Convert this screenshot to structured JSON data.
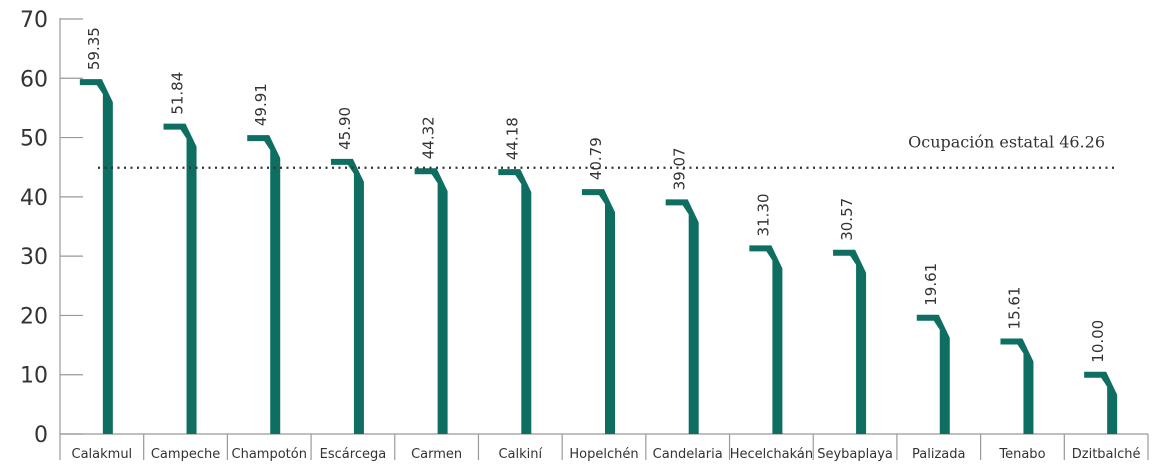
{
  "chart_data": {
    "type": "bar",
    "title": "",
    "xlabel": "",
    "ylabel": "",
    "ylim": [
      0,
      70
    ],
    "yticks": [
      0,
      10,
      20,
      30,
      40,
      50,
      60,
      70
    ],
    "categories": [
      "Calakmul",
      "Campeche",
      "Champotón",
      "Escárcega",
      "Carmen",
      "Calkiní",
      "Hopelchén",
      "Candelaria",
      "Hecelchakán",
      "Seybaplaya",
      "Palizada",
      "Tenabo",
      "Dzitbalché"
    ],
    "values": [
      59.35,
      51.84,
      49.91,
      45.9,
      44.32,
      44.18,
      40.79,
      39.07,
      31.3,
      30.57,
      19.61,
      15.61,
      10.0
    ],
    "value_labels": [
      "59.35",
      "51.84",
      "49.91",
      "45.90",
      "44.32",
      "44.18",
      "40.79",
      "39.07",
      "31.30",
      "30.57",
      "19.61",
      "15.61",
      "10.00"
    ],
    "reference_line": {
      "label": "Ocupación estatal 46.26",
      "value": 46.26,
      "style": "dotted"
    },
    "grid": false,
    "bar_color": "#0e6e62",
    "text_color": "#333333",
    "axis_color": "#999999"
  }
}
